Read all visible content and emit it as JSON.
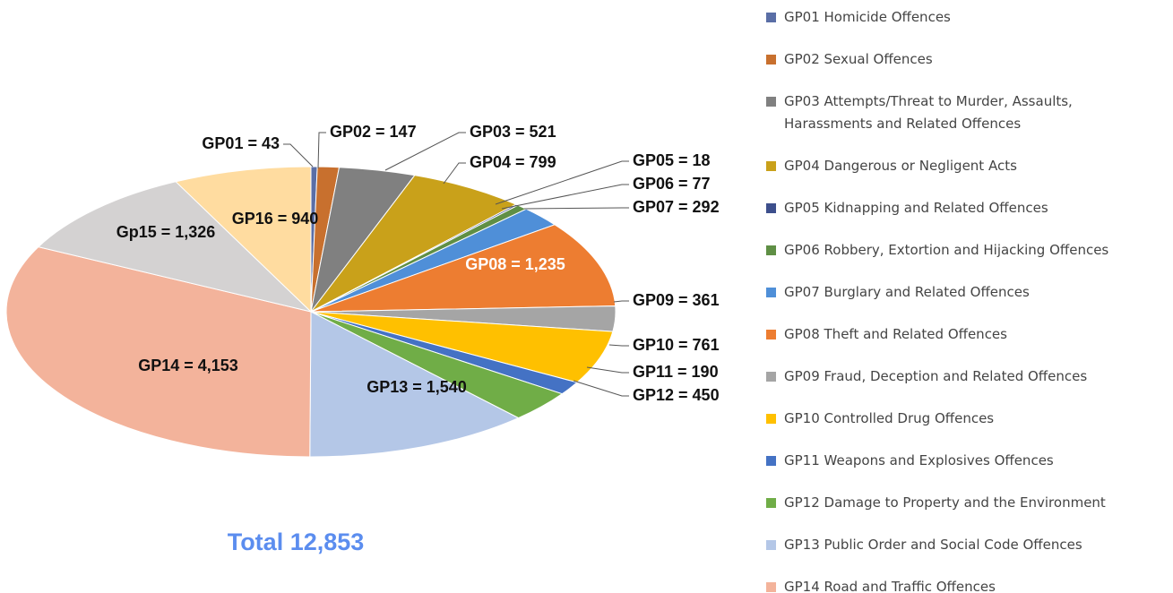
{
  "chart_data": {
    "type": "pie",
    "categories": [
      "GP01 Homicide Offences",
      "GP02 Sexual Offences",
      "GP03 Attempts/Threat to Murder, Assaults, Harassments and Related Offences",
      "GP04 Dangerous or Negligent Acts",
      "GP05 Kidnapping and Related Offences",
      "GP06 Robbery, Extortion and Hijacking Offences",
      "GP07 Burglary and Related Offences",
      "GP08 Theft and Related Offences",
      "GP09 Fraud, Deception and Related Offences",
      "GP10 Controlled Drug Offences",
      "GP11 Weapons and Explosives Offences",
      "GP12 Damage to Property and the Environment",
      "GP13 Public Order and Social Code Offences",
      "GP14 Road and Traffic Offences",
      null,
      null
    ],
    "values": [
      43,
      147,
      521,
      799,
      18,
      77,
      292,
      1235,
      361,
      761,
      190,
      450,
      1540,
      4153,
      1326,
      940
    ],
    "value_labels": [
      "GP01 = 43",
      "GP02 = 147",
      "GP03 = 521",
      "GP04 = 799",
      "GP05 = 18",
      "GP06 = 77",
      "GP07 = 292",
      "GP08 = 1,235",
      "GP09 = 361",
      "GP10 = 761",
      "GP11 = 190",
      "GP12 = 450",
      "GP13 = 1,540",
      "GP14 = 4,153",
      "Gp15 = 1,326",
      "GP16 = 940"
    ],
    "colors": [
      "#5a6ea6",
      "#c8702e",
      "#808080",
      "#c9a11a",
      "#3d4f8c",
      "#5f8f45",
      "#4f8fd8",
      "#ed7d31",
      "#a5a5a5",
      "#ffc000",
      "#4472c4",
      "#70ad47",
      "#b4c7e7",
      "#f3b39b",
      "#d4d2d2",
      "#ffdca0"
    ],
    "total_label": "Total 12,853"
  }
}
